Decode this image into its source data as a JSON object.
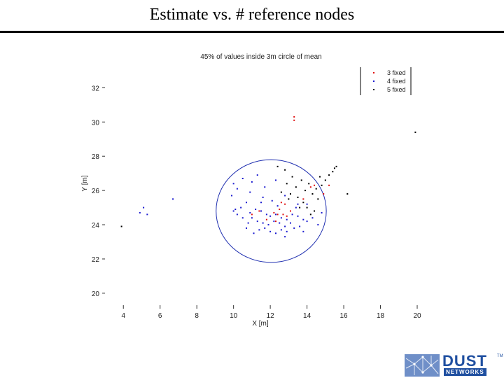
{
  "slide": {
    "title": "Estimate vs. # reference nodes"
  },
  "chart_data": {
    "type": "scatter",
    "title": "45% of values inside 3m circle of mean",
    "xlabel": "X [m]",
    "ylabel": "Y [m]",
    "xlim": [
      3,
      20
    ],
    "ylim": [
      19.3,
      33.2
    ],
    "x_ticks": [
      4,
      6,
      8,
      10,
      12,
      14,
      16,
      18,
      20
    ],
    "y_ticks": [
      20,
      22,
      24,
      26,
      28,
      30,
      32
    ],
    "x_tick_labels": [
      "4",
      "6",
      "8",
      "10",
      "12",
      "14",
      "16",
      "18",
      "20"
    ],
    "y_tick_labels": [
      "20",
      "22",
      "24",
      "26",
      "28",
      "30",
      "32"
    ],
    "grid": false,
    "legend_position": "top-right",
    "circle": {
      "center": [
        12.05,
        24.8
      ],
      "radius": 3.0,
      "color": "#1f2fb0"
    },
    "series": [
      {
        "name": "3 fixed",
        "color": "#e01010",
        "points": [
          [
            13.3,
            30.3
          ],
          [
            13.3,
            30.1
          ],
          [
            15.2,
            26.3
          ],
          [
            14.2,
            26.2
          ],
          [
            14.4,
            26.3
          ],
          [
            13.8,
            25.5
          ],
          [
            14.9,
            25.8
          ],
          [
            12.6,
            25.3
          ],
          [
            12.8,
            25.2
          ],
          [
            12.5,
            24.9
          ],
          [
            12.7,
            24.6
          ],
          [
            12.4,
            24.6
          ],
          [
            11.0,
            24.6
          ],
          [
            11.4,
            24.8
          ],
          [
            12.9,
            24.5
          ],
          [
            12.2,
            24.7
          ],
          [
            13.1,
            24.8
          ],
          [
            11.8,
            24.3
          ],
          [
            12.3,
            24.2
          ]
        ]
      },
      {
        "name": "4 fixed",
        "color": "#1a1ad0",
        "points": [
          [
            10.0,
            26.4
          ],
          [
            10.2,
            26.1
          ],
          [
            9.9,
            25.7
          ],
          [
            10.5,
            26.7
          ],
          [
            11.0,
            26.5
          ],
          [
            12.3,
            26.6
          ],
          [
            11.3,
            26.9
          ],
          [
            11.7,
            26.2
          ],
          [
            10.7,
            25.3
          ],
          [
            10.4,
            25.0
          ],
          [
            10.1,
            24.9
          ],
          [
            10.9,
            24.7
          ],
          [
            11.2,
            24.9
          ],
          [
            11.5,
            24.8
          ],
          [
            11.8,
            24.6
          ],
          [
            12.0,
            24.5
          ],
          [
            12.3,
            24.6
          ],
          [
            12.6,
            24.4
          ],
          [
            12.9,
            24.3
          ],
          [
            13.2,
            24.6
          ],
          [
            13.5,
            24.5
          ],
          [
            13.8,
            24.3
          ],
          [
            11.0,
            24.4
          ],
          [
            11.3,
            24.2
          ],
          [
            11.6,
            24.1
          ],
          [
            11.9,
            24.0
          ],
          [
            12.2,
            24.2
          ],
          [
            12.5,
            24.1
          ],
          [
            12.8,
            23.9
          ],
          [
            13.1,
            24.1
          ],
          [
            11.4,
            23.7
          ],
          [
            11.7,
            23.8
          ],
          [
            12.0,
            23.6
          ],
          [
            12.3,
            23.5
          ],
          [
            12.6,
            23.7
          ],
          [
            12.9,
            23.6
          ],
          [
            13.3,
            23.8
          ],
          [
            10.8,
            24.1
          ],
          [
            10.5,
            24.4
          ],
          [
            10.2,
            24.6
          ],
          [
            10.0,
            24.8
          ],
          [
            13.6,
            23.9
          ],
          [
            14.0,
            24.2
          ],
          [
            14.3,
            24.4
          ],
          [
            14.6,
            24.0
          ],
          [
            14.0,
            25.2
          ],
          [
            13.4,
            25.0
          ],
          [
            11.5,
            25.3
          ],
          [
            12.1,
            25.4
          ],
          [
            12.4,
            25.1
          ],
          [
            10.7,
            23.8
          ],
          [
            11.1,
            23.5
          ],
          [
            12.8,
            23.3
          ],
          [
            13.8,
            23.6
          ],
          [
            5.1,
            25.0
          ],
          [
            5.3,
            24.6
          ],
          [
            4.9,
            24.7
          ],
          [
            6.7,
            25.5
          ],
          [
            10.9,
            25.9
          ],
          [
            11.6,
            25.6
          ],
          [
            12.8,
            25.7
          ],
          [
            13.5,
            25.2
          ],
          [
            14.8,
            24.7
          ]
        ]
      },
      {
        "name": "5 fixed",
        "color": "#000000",
        "points": [
          [
            15.6,
            27.4
          ],
          [
            15.4,
            27.1
          ],
          [
            15.2,
            26.9
          ],
          [
            15.0,
            26.6
          ],
          [
            14.8,
            26.3
          ],
          [
            15.5,
            27.3
          ],
          [
            13.7,
            26.6
          ],
          [
            13.4,
            26.2
          ],
          [
            13.9,
            26.0
          ],
          [
            14.3,
            25.8
          ],
          [
            14.6,
            25.5
          ],
          [
            13.5,
            25.6
          ],
          [
            13.1,
            25.8
          ],
          [
            13.8,
            25.3
          ],
          [
            14.0,
            25.0
          ],
          [
            14.4,
            24.8
          ],
          [
            12.9,
            26.4
          ],
          [
            12.6,
            25.9
          ],
          [
            13.2,
            26.8
          ],
          [
            12.8,
            27.2
          ],
          [
            14.1,
            26.4
          ],
          [
            14.5,
            26.1
          ],
          [
            13.6,
            25.0
          ],
          [
            14.2,
            24.6
          ],
          [
            12.4,
            27.4
          ],
          [
            14.7,
            26.8
          ],
          [
            13.0,
            25.5
          ],
          [
            19.9,
            29.4
          ],
          [
            3.9,
            23.9
          ],
          [
            16.2,
            25.8
          ]
        ]
      }
    ]
  },
  "logo": {
    "wordmark": "DUST",
    "subtext": "NETWORKS",
    "tm": "TM"
  }
}
